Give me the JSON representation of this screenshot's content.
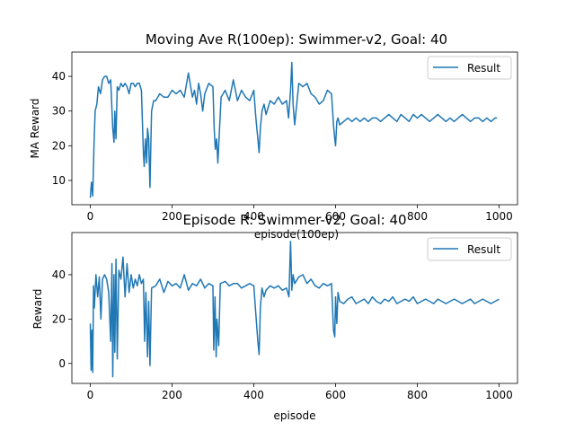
{
  "chart_data": [
    {
      "type": "line",
      "title": "Moving Ave R(100ep): Swimmer-v2, Goal: 40",
      "xlabel": "episode(100ep)",
      "ylabel": "MA Reward",
      "xlim": [
        -45,
        1045
      ],
      "ylim": [
        3,
        47
      ],
      "xticks": [
        0,
        200,
        400,
        600,
        800,
        1000
      ],
      "yticks": [
        10,
        20,
        30,
        40
      ],
      "legend": "top-right",
      "series": [
        {
          "name": "Result",
          "color": "#1f77b4",
          "x": [
            0,
            3,
            6,
            9,
            12,
            16,
            20,
            25,
            30,
            35,
            40,
            45,
            50,
            55,
            58,
            60,
            63,
            66,
            70,
            75,
            80,
            85,
            90,
            95,
            100,
            105,
            110,
            115,
            120,
            125,
            130,
            132,
            135,
            138,
            140,
            143,
            146,
            150,
            155,
            160,
            170,
            180,
            190,
            200,
            210,
            220,
            230,
            240,
            250,
            255,
            260,
            265,
            270,
            275,
            280,
            290,
            300,
            303,
            306,
            309,
            312,
            315,
            320,
            330,
            340,
            350,
            360,
            370,
            380,
            390,
            400,
            405,
            410,
            413,
            416,
            420,
            425,
            430,
            440,
            450,
            460,
            470,
            480,
            485,
            490,
            493,
            496,
            500,
            510,
            520,
            530,
            540,
            550,
            560,
            570,
            580,
            590,
            595,
            598,
            600,
            603,
            606,
            610,
            620,
            630,
            640,
            650,
            660,
            670,
            680,
            690,
            700,
            710,
            720,
            730,
            740,
            750,
            760,
            770,
            780,
            790,
            800,
            810,
            820,
            830,
            840,
            850,
            860,
            870,
            880,
            890,
            900,
            910,
            920,
            930,
            940,
            950,
            960,
            970,
            980,
            990,
            995
          ],
          "y": [
            5,
            9.5,
            5.5,
            20,
            30,
            32,
            37,
            35,
            39,
            40,
            40,
            38,
            39,
            25,
            21,
            30,
            22,
            37,
            36,
            38,
            37,
            38,
            37,
            35,
            38,
            38,
            37,
            38,
            38,
            36,
            18,
            14,
            22,
            15,
            25,
            22,
            8,
            30,
            33,
            33,
            35,
            34,
            34,
            36,
            35,
            36,
            34,
            41,
            34,
            36,
            32,
            38,
            35,
            30,
            35,
            38,
            37,
            25,
            19,
            22,
            15,
            22,
            34,
            36,
            33,
            39,
            33,
            36,
            34,
            33,
            36,
            28,
            22,
            18,
            25,
            30,
            32,
            29,
            33,
            32,
            34,
            32,
            33,
            28,
            36,
            44,
            32,
            26,
            38,
            37,
            38,
            35,
            34,
            32,
            33,
            36,
            35,
            26,
            22,
            20,
            27,
            28,
            26,
            27,
            28,
            27,
            28,
            27,
            28,
            27,
            28,
            28,
            27,
            28,
            29,
            28,
            27,
            29,
            28,
            27,
            29,
            28,
            29,
            28,
            27,
            28,
            29,
            28,
            27,
            28,
            27,
            28,
            29,
            28,
            27,
            28,
            28,
            27,
            28,
            27,
            28,
            28
          ]
        }
      ]
    },
    {
      "type": "line",
      "title": "Episode R: Swimmer-v2, Goal: 40",
      "xlabel": "episode",
      "ylabel": "Reward",
      "xlim": [
        -45,
        1045
      ],
      "ylim": [
        -9,
        59
      ],
      "xticks": [
        0,
        200,
        400,
        600,
        800,
        1000
      ],
      "yticks": [
        0,
        20,
        40
      ],
      "legend": "top-right",
      "series": [
        {
          "name": "Result",
          "color": "#1f77b4",
          "x": [
            0,
            2,
            4,
            6,
            8,
            10,
            14,
            18,
            22,
            26,
            30,
            35,
            40,
            45,
            50,
            53,
            55,
            58,
            60,
            63,
            66,
            70,
            75,
            80,
            85,
            90,
            95,
            100,
            105,
            110,
            115,
            120,
            125,
            130,
            133,
            136,
            140,
            143,
            146,
            150,
            160,
            170,
            180,
            190,
            200,
            210,
            220,
            230,
            240,
            250,
            260,
            270,
            280,
            290,
            300,
            302,
            305,
            308,
            310,
            314,
            318,
            330,
            340,
            350,
            360,
            370,
            380,
            390,
            400,
            405,
            410,
            413,
            416,
            420,
            425,
            430,
            440,
            450,
            460,
            470,
            480,
            486,
            490,
            493,
            496,
            500,
            510,
            520,
            530,
            540,
            550,
            560,
            570,
            580,
            590,
            595,
            598,
            600,
            603,
            606,
            610,
            620,
            630,
            640,
            650,
            660,
            670,
            680,
            690,
            700,
            710,
            720,
            730,
            740,
            750,
            760,
            770,
            780,
            790,
            800,
            810,
            820,
            830,
            840,
            850,
            860,
            870,
            880,
            890,
            900,
            910,
            920,
            930,
            940,
            950,
            960,
            970,
            980,
            990,
            1000
          ],
          "y": [
            18,
            -3,
            15,
            -4,
            35,
            25,
            40,
            30,
            39,
            20,
            38,
            40,
            38,
            32,
            10,
            45,
            -6,
            40,
            5,
            47,
            2,
            42,
            38,
            48,
            30,
            45,
            32,
            40,
            34,
            38,
            35,
            40,
            36,
            38,
            10,
            32,
            3,
            28,
            -1,
            34,
            35,
            38,
            32,
            37,
            35,
            36,
            34,
            40,
            33,
            36,
            35,
            38,
            34,
            36,
            35,
            6,
            30,
            3,
            20,
            8,
            36,
            37,
            35,
            36,
            36,
            34,
            35,
            36,
            35,
            22,
            10,
            4,
            25,
            34,
            30,
            33,
            35,
            34,
            35,
            33,
            34,
            30,
            55,
            33,
            40,
            36,
            39,
            40,
            36,
            38,
            35,
            34,
            36,
            35,
            36,
            15,
            12,
            30,
            18,
            32,
            28,
            27,
            29,
            30,
            27,
            28,
            29,
            27,
            30,
            28,
            27,
            29,
            28,
            30,
            27,
            28,
            29,
            28,
            30,
            27,
            28,
            29,
            28,
            27,
            29,
            28,
            27,
            28,
            29,
            28,
            27,
            28,
            29,
            27,
            28,
            29,
            28,
            27,
            28,
            29
          ]
        }
      ]
    }
  ]
}
